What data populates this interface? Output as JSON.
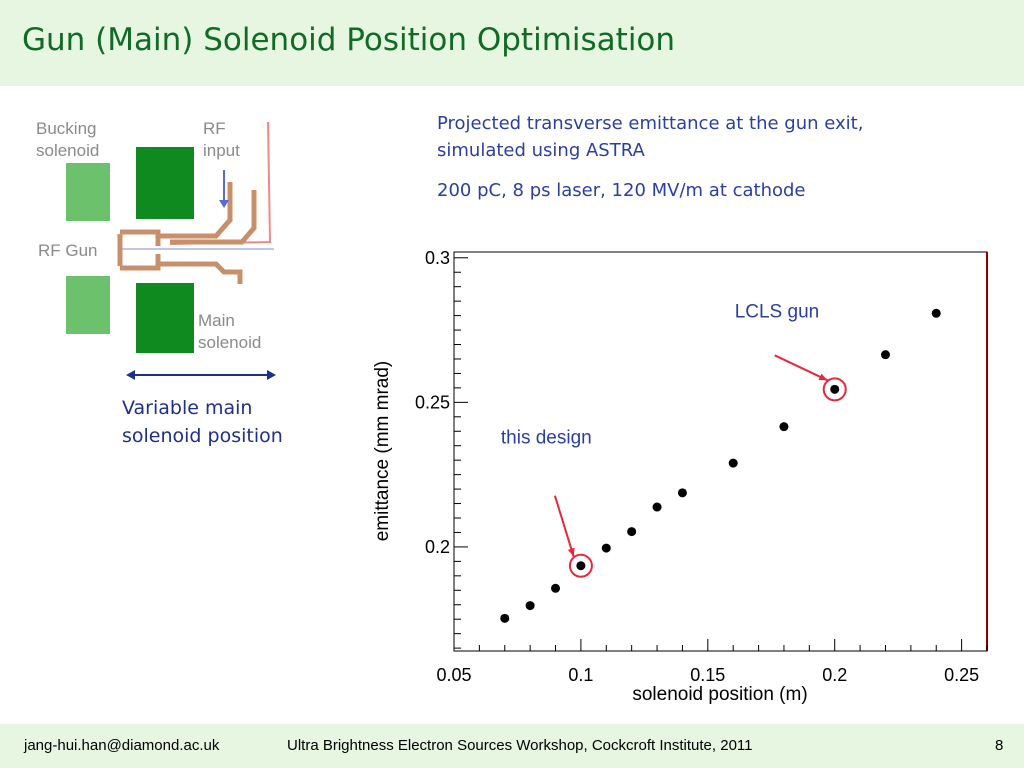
{
  "slide": {
    "title": "Gun (Main) Solenoid Position Optimisation",
    "description_line1": "Projected transverse emittance at the gun exit,",
    "description_line2": "simulated using ASTRA",
    "description_line3": "200 pC, 8 ps laser, 120 MV/m at cathode",
    "footer_email": "jang-hui.han@diamond.ac.uk",
    "footer_event": "Ultra Brightness Electron Sources Workshop, Cockcroft Institute, 2011",
    "page_number": "8"
  },
  "diagram": {
    "bucking_label_1": "Bucking",
    "bucking_label_2": "solenoid",
    "rf_label_1": "RF",
    "rf_label_2": "input",
    "gun_label": "RF Gun",
    "main_label_1": "Main",
    "main_label_2": "solenoid",
    "caption_line1": "Variable main",
    "caption_line2": "solenoid position",
    "colors": {
      "bucking": "#6cc26c",
      "main": "#0e8a1e",
      "gun": "#c8906a",
      "rf_line": "#f08a8a",
      "arrow": "#5a6ad8"
    }
  },
  "chart_data": {
    "type": "scatter",
    "xlabel": "solenoid position (m)",
    "ylabel": "emittance (mm mrad)",
    "xlim": [
      0.05,
      0.26
    ],
    "ylim": [
      0.164,
      0.302
    ],
    "xticks": [
      0.05,
      0.1,
      0.15,
      0.2,
      0.25
    ],
    "xtick_labels": [
      "0.05",
      "0.1",
      "0.15",
      "0.2",
      "0.25"
    ],
    "yticks": [
      0.2,
      0.25,
      0.3
    ],
    "ytick_labels": [
      "0.2",
      "0.25",
      "0.3"
    ],
    "points": [
      {
        "x": 0.07,
        "y": 0.1753
      },
      {
        "x": 0.08,
        "y": 0.1797
      },
      {
        "x": 0.09,
        "y": 0.1857
      },
      {
        "x": 0.1,
        "y": 0.1935
      },
      {
        "x": 0.11,
        "y": 0.1996
      },
      {
        "x": 0.12,
        "y": 0.2053
      },
      {
        "x": 0.13,
        "y": 0.2138
      },
      {
        "x": 0.14,
        "y": 0.2187
      },
      {
        "x": 0.16,
        "y": 0.229
      },
      {
        "x": 0.18,
        "y": 0.2416
      },
      {
        "x": 0.2,
        "y": 0.2545
      },
      {
        "x": 0.22,
        "y": 0.2665
      },
      {
        "x": 0.24,
        "y": 0.2808
      }
    ],
    "annotations": [
      {
        "text": "LCLS gun",
        "x": 0.2,
        "y": 0.2545,
        "color": "#e8283a"
      },
      {
        "text": "this design",
        "x": 0.1,
        "y": 0.1935,
        "color": "#e8283a"
      }
    ],
    "label_color": "#2a3fa0",
    "grid": false
  }
}
